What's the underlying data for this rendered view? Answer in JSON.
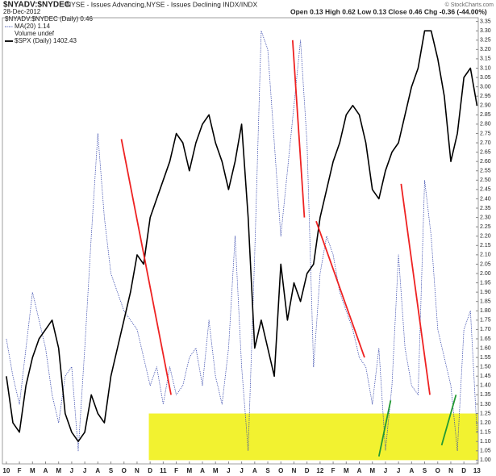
{
  "chart_data": {
    "type": "line",
    "title": "$NYADV:$NYDEC",
    "subtitle": "NYSE - Issues Advancing,NYSE - Issues Declining INDX/INDX",
    "date": "28-Dec-2012",
    "stats": "Open 0.13 High 0.62 Low 0.13 Close 0.46 Chg -0.36 (-44.00%)",
    "credit": "© StockCharts.com",
    "legend_extra": [
      "$NYADV:$NYDEC (Daily) 0.46",
      "Volume undef"
    ],
    "x": [
      0,
      0.5,
      1,
      1.5,
      2,
      2.5,
      3,
      3.5,
      4,
      4.5,
      5,
      5.5,
      6,
      6.5,
      7,
      7.5,
      8,
      8.5,
      9,
      9.5,
      10,
      10.5,
      11,
      11.5,
      12,
      12.5,
      13,
      13.5,
      14,
      14.5,
      15,
      15.5,
      16,
      16.5,
      17,
      17.5,
      18,
      18.5,
      19,
      19.5,
      20,
      20.5,
      21,
      21.5,
      22,
      22.5,
      23,
      23.5,
      24,
      24.5,
      25,
      25.5,
      26,
      26.5,
      27,
      27.5,
      28,
      28.5,
      29,
      29.5,
      30,
      30.5,
      31,
      31.5,
      32,
      32.5,
      33,
      33.5,
      34,
      34.5,
      35,
      35.5,
      36
    ],
    "series": [
      {
        "name": "MA(20) 1.14",
        "color": "#3344aa",
        "dash": true,
        "values": [
          1.65,
          1.45,
          1.3,
          1.6,
          1.9,
          1.75,
          1.6,
          1.35,
          1.2,
          1.45,
          1.5,
          1.05,
          1.6,
          2.2,
          2.75,
          2.3,
          2.0,
          1.9,
          1.8,
          1.75,
          1.7,
          1.55,
          1.4,
          1.5,
          1.3,
          1.5,
          1.35,
          1.4,
          1.55,
          1.6,
          1.4,
          1.75,
          1.45,
          1.3,
          1.6,
          2.2,
          1.5,
          1.05,
          2.1,
          3.3,
          3.2,
          2.7,
          2.2,
          2.55,
          2.9,
          3.25,
          2.7,
          1.5,
          2.0,
          2.2,
          2.1,
          1.9,
          1.8,
          1.7,
          1.55,
          1.5,
          1.3,
          1.6,
          1.05,
          1.4,
          2.1,
          1.6,
          1.4,
          1.35,
          2.5,
          2.2,
          1.7,
          1.55,
          1.4,
          1.05,
          1.7,
          1.8,
          1.15
        ]
      },
      {
        "name": "$SPX (Daily) 1402.43",
        "color": "#000000",
        "dash": false,
        "values": [
          1.45,
          1.2,
          1.15,
          1.4,
          1.55,
          1.65,
          1.7,
          1.75,
          1.6,
          1.25,
          1.15,
          1.1,
          1.15,
          1.35,
          1.25,
          1.2,
          1.45,
          1.6,
          1.75,
          1.9,
          2.1,
          2.05,
          2.3,
          2.4,
          2.5,
          2.6,
          2.75,
          2.7,
          2.55,
          2.7,
          2.8,
          2.85,
          2.7,
          2.6,
          2.45,
          2.6,
          2.8,
          2.3,
          1.6,
          1.75,
          1.6,
          1.45,
          2.05,
          1.75,
          1.95,
          1.85,
          2.0,
          2.05,
          2.3,
          2.45,
          2.6,
          2.7,
          2.85,
          2.9,
          2.85,
          2.7,
          2.45,
          2.4,
          2.55,
          2.65,
          2.7,
          2.85,
          3.0,
          3.1,
          3.3,
          3.3,
          3.15,
          2.95,
          2.6,
          2.75,
          3.05,
          3.1,
          2.9
        ]
      }
    ],
    "trend_lines": [
      {
        "color": "#ee2222",
        "x": [
          8.8,
          12.6
        ],
        "y": [
          2.72,
          1.35
        ]
      },
      {
        "color": "#ee2222",
        "x": [
          21.9,
          22.8
        ],
        "y": [
          3.25,
          2.3
        ]
      },
      {
        "color": "#ee2222",
        "x": [
          23.7,
          27.4
        ],
        "y": [
          2.28,
          1.55
        ]
      },
      {
        "color": "#ee2222",
        "x": [
          30.2,
          32.4
        ],
        "y": [
          2.48,
          1.35
        ]
      },
      {
        "color": "#229933",
        "x": [
          28.5,
          29.4
        ],
        "y": [
          1.02,
          1.32
        ]
      },
      {
        "color": "#229933",
        "x": [
          33.3,
          34.4
        ],
        "y": [
          1.08,
          1.35
        ]
      }
    ],
    "highlight": {
      "color": "#f2f230",
      "x": [
        10.9,
        36.1
      ],
      "y": [
        1.0,
        1.25
      ]
    },
    "xlim": [
      -0.3,
      36.1
    ],
    "ylim": [
      0.98,
      3.37
    ],
    "xticks": [
      {
        "value": 0,
        "label": "10"
      },
      {
        "value": 1,
        "label": "F"
      },
      {
        "value": 2,
        "label": "M"
      },
      {
        "value": 3,
        "label": "A"
      },
      {
        "value": 4,
        "label": "M"
      },
      {
        "value": 5,
        "label": "J"
      },
      {
        "value": 6,
        "label": "J"
      },
      {
        "value": 7,
        "label": "A"
      },
      {
        "value": 8,
        "label": "S"
      },
      {
        "value": 9,
        "label": "O"
      },
      {
        "value": 10,
        "label": "N"
      },
      {
        "value": 11,
        "label": "D"
      },
      {
        "value": 12,
        "label": "11"
      },
      {
        "value": 13,
        "label": "F"
      },
      {
        "value": 14,
        "label": "M"
      },
      {
        "value": 15,
        "label": "A"
      },
      {
        "value": 16,
        "label": "M"
      },
      {
        "value": 17,
        "label": "J"
      },
      {
        "value": 18,
        "label": "J"
      },
      {
        "value": 19,
        "label": "A"
      },
      {
        "value": 20,
        "label": "S"
      },
      {
        "value": 21,
        "label": "O"
      },
      {
        "value": 22,
        "label": "N"
      },
      {
        "value": 23,
        "label": "D"
      },
      {
        "value": 24,
        "label": "12"
      },
      {
        "value": 25,
        "label": "F"
      },
      {
        "value": 26,
        "label": "M"
      },
      {
        "value": 27,
        "label": "A"
      },
      {
        "value": 28,
        "label": "M"
      },
      {
        "value": 29,
        "label": "J"
      },
      {
        "value": 30,
        "label": "J"
      },
      {
        "value": 31,
        "label": "A"
      },
      {
        "value": 32,
        "label": "S"
      },
      {
        "value": 33,
        "label": "O"
      },
      {
        "value": 34,
        "label": "N"
      },
      {
        "value": 35,
        "label": "D"
      },
      {
        "value": 36,
        "label": "13"
      }
    ],
    "yticks": [
      {
        "value": 1,
        "label": "1.00"
      },
      1.05,
      {
        "value": 1.1,
        "label": "1.10"
      },
      1.15,
      {
        "value": 1.2,
        "label": "1.20"
      },
      1.25,
      {
        "value": 1.3,
        "label": "1.30"
      },
      1.35,
      {
        "value": 1.4,
        "label": "1.40"
      },
      1.45,
      {
        "value": 1.5,
        "label": "1.50"
      },
      1.55,
      {
        "value": 1.6,
        "label": "1.60"
      },
      1.65,
      {
        "value": 1.7,
        "label": "1.70"
      },
      1.75,
      {
        "value": 1.8,
        "label": "1.80"
      },
      1.85,
      {
        "value": 1.9,
        "label": "1.90"
      },
      1.95,
      {
        "value": 2,
        "label": "2.00"
      },
      2.05,
      {
        "value": 2.1,
        "label": "2.10"
      },
      2.15,
      {
        "value": 2.2,
        "label": "2.20"
      },
      2.25,
      {
        "value": 2.3,
        "label": "2.30"
      },
      2.35,
      {
        "value": 2.4,
        "label": "2.40"
      },
      2.45,
      {
        "value": 2.5,
        "label": "2.50"
      },
      2.55,
      {
        "value": 2.6,
        "label": "2.60"
      },
      2.65,
      {
        "value": 2.7,
        "label": "2.70"
      },
      2.75,
      {
        "value": 2.8,
        "label": "2.80"
      },
      2.85,
      {
        "value": 2.9,
        "label": "2.90"
      },
      2.95,
      {
        "value": 3,
        "label": "3.00"
      },
      3.05,
      {
        "value": 3.1,
        "label": "3.10"
      },
      3.15,
      {
        "value": 3.2,
        "label": "3.20"
      },
      3.25,
      {
        "value": 3.3,
        "label": "3.30"
      },
      3.35
    ]
  }
}
